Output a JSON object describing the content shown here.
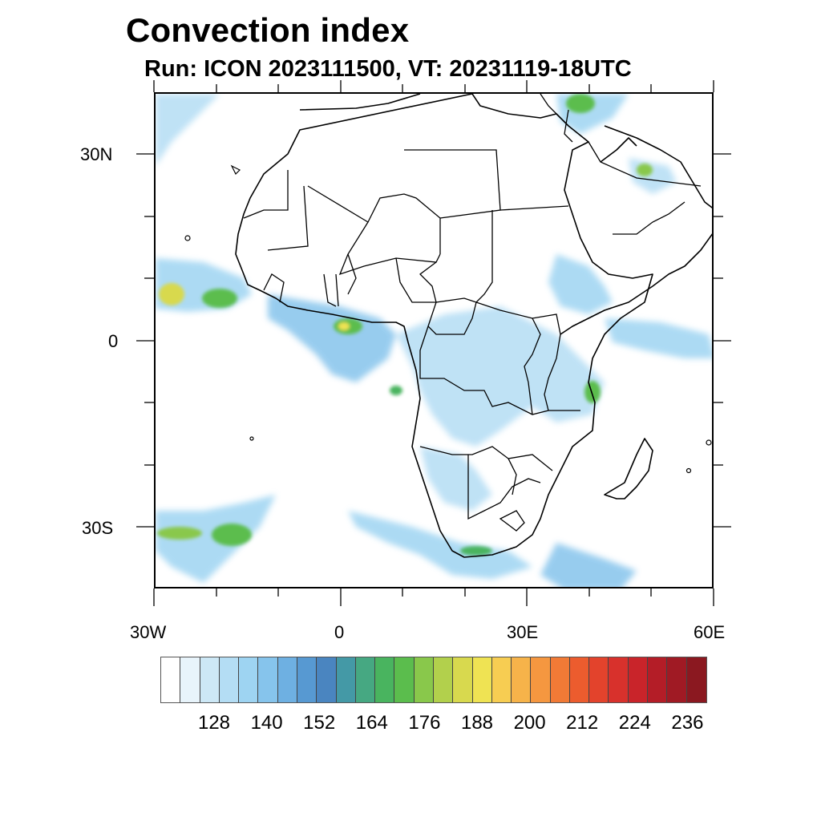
{
  "title": "Convection index",
  "subtitle": "Run: ICON 2023111500,  VT: 20231119-18UTC",
  "map": {
    "region": "Africa",
    "lon_range": [
      -30,
      60
    ],
    "lat_range": [
      -40,
      40
    ],
    "lat_labels": [
      "30N",
      "0",
      "30S"
    ],
    "lon_labels": [
      "30W",
      "0",
      "30E",
      "60E"
    ]
  },
  "colorbar": {
    "colors": [
      "#ffffff",
      "#e8f4fb",
      "#cde8f6",
      "#b4ddf4",
      "#9ed4f2",
      "#86c4ec",
      "#6eb0e2",
      "#5799d2",
      "#4a85c0",
      "#4499a6",
      "#46a882",
      "#49b45f",
      "#5bbd4d",
      "#89c84b",
      "#b2d04c",
      "#d8d94e",
      "#efe353",
      "#f7cd52",
      "#f6b34a",
      "#f59740",
      "#f17a36",
      "#ec5c2e",
      "#e3432c",
      "#d8312c",
      "#c9242a",
      "#b41d27",
      "#a01a24",
      "#8b1820"
    ],
    "labels": [
      "128",
      "140",
      "152",
      "164",
      "176",
      "188",
      "200",
      "212",
      "224",
      "236"
    ]
  }
}
